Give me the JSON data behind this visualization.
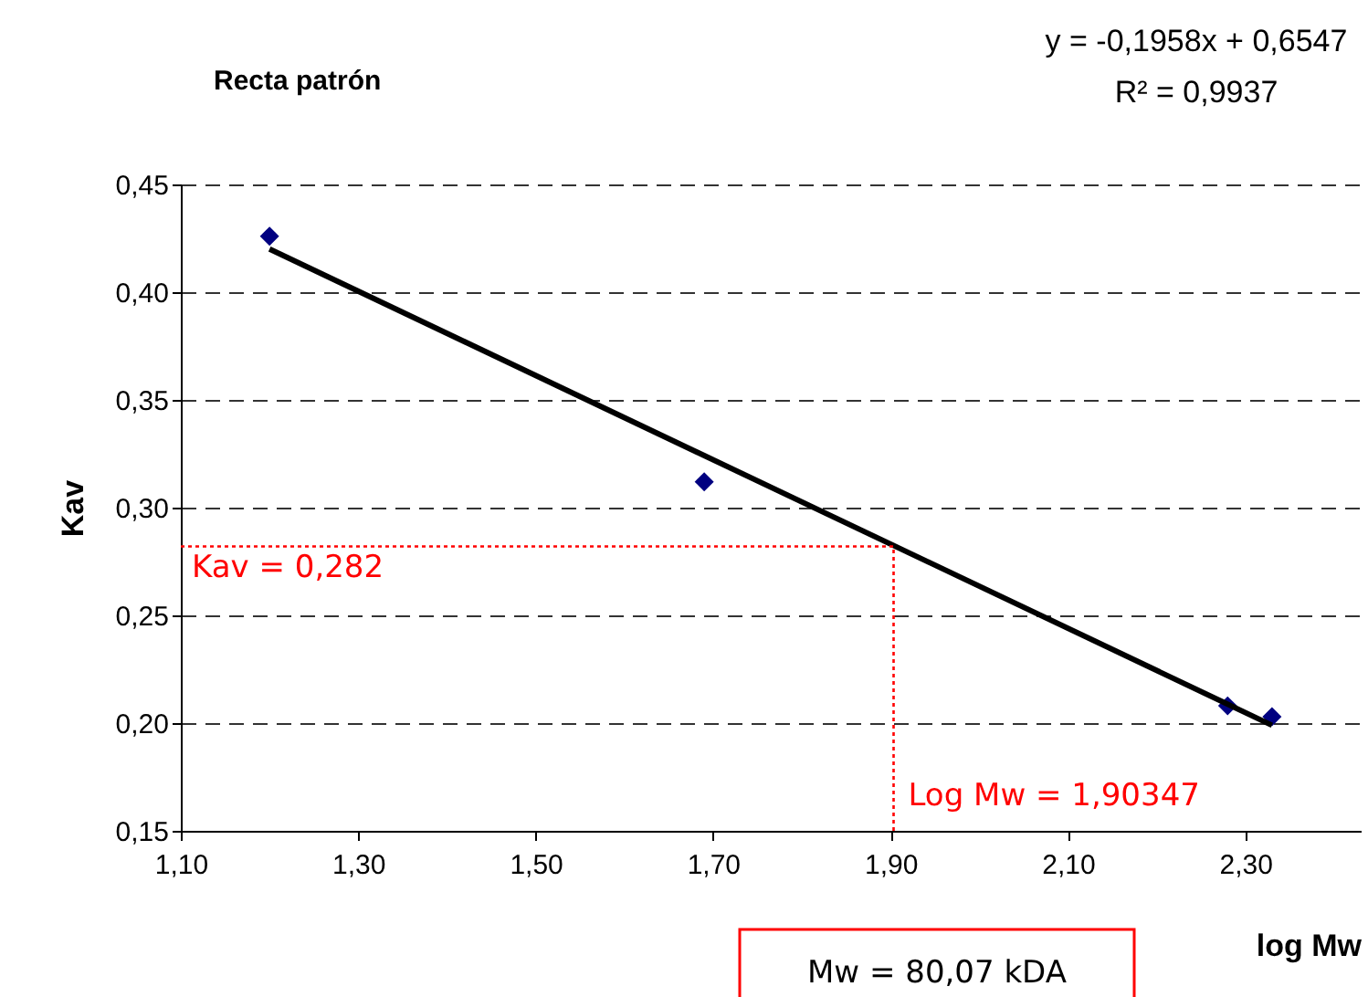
{
  "chart_data": {
    "type": "scatter",
    "title": "Recta patrón",
    "xlabel": "log Mw",
    "ylabel": "Kav",
    "xlim": [
      1.1,
      2.43
    ],
    "ylim": [
      0.15,
      0.45
    ],
    "xticks": [
      {
        "value": 1.1,
        "label": "1,10"
      },
      {
        "value": 1.3,
        "label": "1,30"
      },
      {
        "value": 1.5,
        "label": "1,50"
      },
      {
        "value": 1.7,
        "label": "1,70"
      },
      {
        "value": 1.9,
        "label": "1,90"
      },
      {
        "value": 2.1,
        "label": "2,10"
      },
      {
        "value": 2.3,
        "label": "2,30"
      }
    ],
    "yticks": [
      {
        "value": 0.15,
        "label": "0,15"
      },
      {
        "value": 0.2,
        "label": "0,20"
      },
      {
        "value": 0.25,
        "label": "0,25"
      },
      {
        "value": 0.3,
        "label": "0,30"
      },
      {
        "value": 0.35,
        "label": "0,35"
      },
      {
        "value": 0.4,
        "label": "0,40"
      },
      {
        "value": 0.45,
        "label": "0,45"
      }
    ],
    "grid": "y",
    "series": [
      {
        "type": "scatter",
        "marker": "diamond",
        "color": "#000080",
        "x": [
          1.2,
          1.69,
          2.28,
          2.33
        ],
        "values": [
          0.426,
          0.312,
          0.208,
          0.203
        ]
      },
      {
        "type": "line",
        "color": "#000000",
        "line_style": "solid",
        "x": [
          1.2,
          2.33
        ],
        "values": [
          0.42,
          0.199
        ]
      },
      {
        "type": "line",
        "color": "#ff0000",
        "line_style": "dotted",
        "x": [
          1.1,
          1.90347,
          1.90347
        ],
        "values": [
          0.282,
          0.282,
          0.15
        ]
      }
    ],
    "annotations": [
      "y = -0,1958x + 0,6547",
      "R² = 0,9937",
      {
        "text": "Kav = 0,282",
        "x": 1.1,
        "y": 0.282
      },
      {
        "text": "Log Mw = 1,90347",
        "x": 1.90347,
        "y": 0.15
      },
      "Mw = 80,07 kDA"
    ]
  }
}
